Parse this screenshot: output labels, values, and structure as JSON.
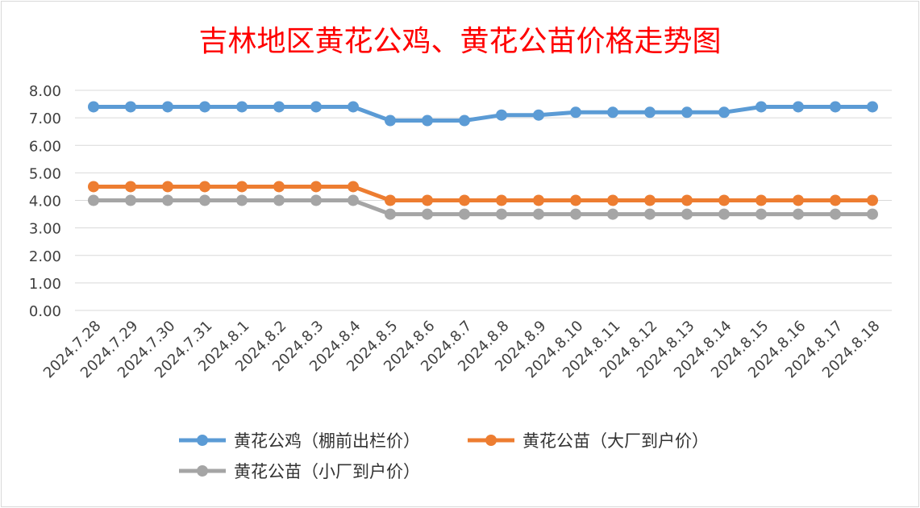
{
  "chart_data": {
    "type": "line",
    "title": "吉林地区黄花公鸡、黄花公苗价格走势图",
    "categories": [
      "2024.7.28",
      "2024.7.29",
      "2024.7.30",
      "2024.7.31",
      "2024.8.1",
      "2024.8.2",
      "2024.8.3",
      "2024.8.4",
      "2024.8.5",
      "2024.8.6",
      "2024.8.7",
      "2024.8.8",
      "2024.8.9",
      "2024.8.10",
      "2024.8.11",
      "2024.8.12",
      "2024.8.13",
      "2024.8.14",
      "2024.8.15",
      "2024.8.16",
      "2024.8.17",
      "2024.8.18"
    ],
    "ylim": [
      0,
      8
    ],
    "yticks": [
      "0.00",
      "1.00",
      "2.00",
      "3.00",
      "4.00",
      "5.00",
      "6.00",
      "7.00",
      "8.00"
    ],
    "grid": true,
    "legend_position": "bottom",
    "series": [
      {
        "name": "黄花公鸡（棚前出栏价）",
        "color": "#5b9bd5",
        "values": [
          7.4,
          7.4,
          7.4,
          7.4,
          7.4,
          7.4,
          7.4,
          7.4,
          6.9,
          6.9,
          6.9,
          7.1,
          7.1,
          7.2,
          7.2,
          7.2,
          7.2,
          7.2,
          7.4,
          7.4,
          7.4,
          7.4
        ]
      },
      {
        "name": "黄花公苗（大厂到户价）",
        "color": "#ed7d31",
        "values": [
          4.5,
          4.5,
          4.5,
          4.5,
          4.5,
          4.5,
          4.5,
          4.5,
          4.0,
          4.0,
          4.0,
          4.0,
          4.0,
          4.0,
          4.0,
          4.0,
          4.0,
          4.0,
          4.0,
          4.0,
          4.0,
          4.0
        ]
      },
      {
        "name": "黄花公苗（小厂到户价）",
        "color": "#a5a5a5",
        "values": [
          4.0,
          4.0,
          4.0,
          4.0,
          4.0,
          4.0,
          4.0,
          4.0,
          3.5,
          3.5,
          3.5,
          3.5,
          3.5,
          3.5,
          3.5,
          3.5,
          3.5,
          3.5,
          3.5,
          3.5,
          3.5,
          3.5
        ]
      }
    ]
  }
}
